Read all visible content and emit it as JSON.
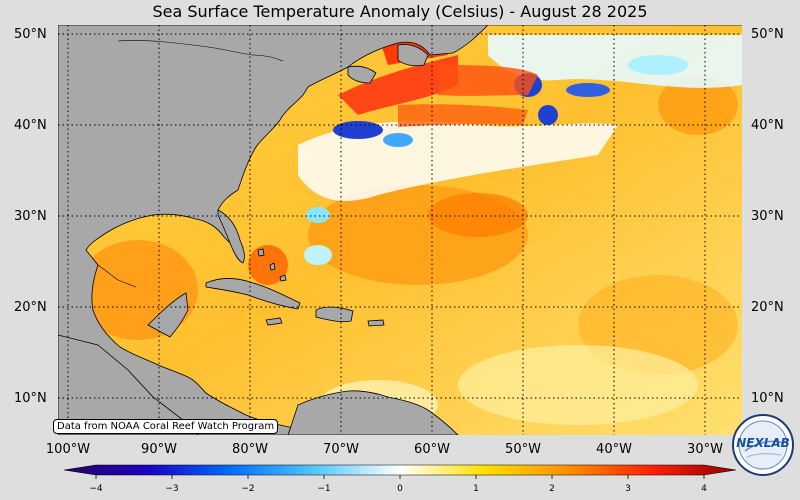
{
  "title": "Sea Surface Temperature Anomaly (Celsius) - August 28 2025",
  "latitude_labels": [
    "50°N",
    "40°N",
    "30°N",
    "20°N",
    "10°N"
  ],
  "longitude_labels": [
    "100°W",
    "90°W",
    "80°W",
    "70°W",
    "60°W",
    "50°W",
    "40°W",
    "30°W"
  ],
  "credit": "Data from NOAA Coral Reef Watch Program",
  "colorbar": {
    "ticks": [
      "−4",
      "−3",
      "−2",
      "−1",
      "0",
      "1",
      "2",
      "3",
      "4"
    ],
    "range": [
      -4,
      4
    ],
    "colors": [
      "#2a0060",
      "#1a00c8",
      "#0070ff",
      "#55c8ff",
      "#ffffff",
      "#ffe000",
      "#ff9000",
      "#ff2000",
      "#900000"
    ]
  },
  "logo": {
    "text": "NEXLAB"
  },
  "colors": {
    "land": "#a8a8a8",
    "ocean_base": "#ffd24a",
    "background": "#dedede"
  }
}
